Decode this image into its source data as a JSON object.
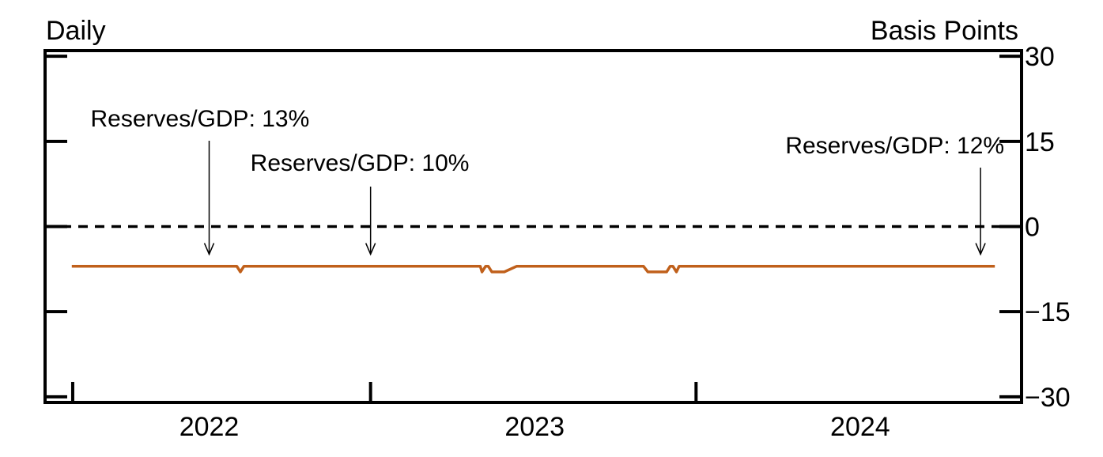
{
  "chart_data": {
    "type": "line",
    "left_label": "Daily",
    "right_label": "Basis Points",
    "y_ticks": [
      30,
      15,
      0,
      -15,
      -30
    ],
    "y_tick_labels": [
      "30",
      "15",
      "0",
      "−15",
      "−30"
    ],
    "ylim": [
      -31,
      31
    ],
    "x_range": [
      "2021-07-01",
      "2024-06-30"
    ],
    "x_tick_labels": [
      "2022",
      "2023",
      "2024"
    ],
    "x_major_ticks": [
      "2021-08-01",
      "2022-07-01",
      "2023-07-01"
    ],
    "x_label_positions": [
      "2022-01-01",
      "2023-01-01",
      "2024-01-01"
    ],
    "reference_line": {
      "y": 0,
      "style": "dashed"
    },
    "series": [
      {
        "color": "#c0601b",
        "x": [
          "2021-07-31",
          "2022-02-01",
          "2022-02-05",
          "2022-02-09",
          "2022-02-14",
          "2022-11-01",
          "2022-11-03",
          "2022-11-07",
          "2022-11-10",
          "2022-11-14",
          "2022-11-16",
          "2022-11-23",
          "2022-11-28",
          "2022-12-12",
          "2022-12-15",
          "2023-05-03",
          "2023-05-08",
          "2023-05-10",
          "2023-05-24",
          "2023-05-29",
          "2023-06-02",
          "2023-06-05",
          "2023-06-09",
          "2023-06-12",
          "2024-05-31"
        ],
        "y": [
          -7,
          -7,
          -8,
          -7,
          -7,
          -7,
          -8,
          -7,
          -7,
          -8,
          -8,
          -8,
          -8,
          -7,
          -7,
          -7,
          -8,
          -8,
          -8,
          -8,
          -7,
          -7,
          -8,
          -7,
          -7
        ]
      }
    ],
    "annotations": [
      {
        "text": "Reserves/GDP: 13%",
        "x": "2022-01-01",
        "y": -6
      },
      {
        "text": "Reserves/GDP: 10%",
        "x": "2022-07-01",
        "y": -6
      },
      {
        "text": "Reserves/GDP: 12%",
        "x": "2024-05-15",
        "y": -6
      }
    ]
  }
}
